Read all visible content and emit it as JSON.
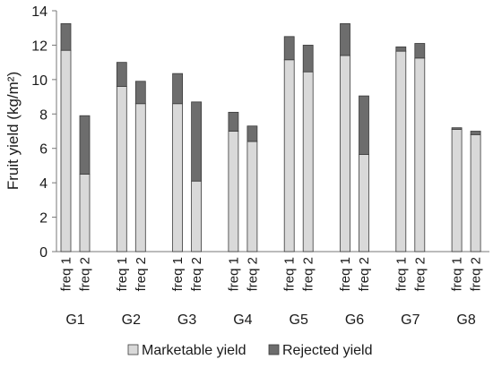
{
  "chart_data": {
    "type": "bar",
    "stacked": true,
    "ylabel": "Fruit yield (kg/m²)",
    "ylim": [
      0,
      14
    ],
    "yticks": [
      0,
      2,
      4,
      6,
      8,
      10,
      12,
      14
    ],
    "grid": false,
    "legend_position": "bottom",
    "groups": [
      "G1",
      "G2",
      "G3",
      "G4",
      "G5",
      "G6",
      "G7",
      "G8"
    ],
    "subcategories": [
      "freq 1",
      "freq 2"
    ],
    "series": [
      {
        "name": "Marketable yield",
        "color": "#d9d9d9",
        "values": [
          11.7,
          4.5,
          9.6,
          8.6,
          8.6,
          4.1,
          7.0,
          6.4,
          11.15,
          10.45,
          11.4,
          5.65,
          11.65,
          11.25,
          7.1,
          6.8
        ]
      },
      {
        "name": "Rejected yield",
        "color": "#6d6d6d",
        "values": [
          1.55,
          3.4,
          1.4,
          1.3,
          1.75,
          4.6,
          1.1,
          0.9,
          1.35,
          1.55,
          1.85,
          3.4,
          0.25,
          0.85,
          0.1,
          0.2
        ]
      }
    ]
  }
}
